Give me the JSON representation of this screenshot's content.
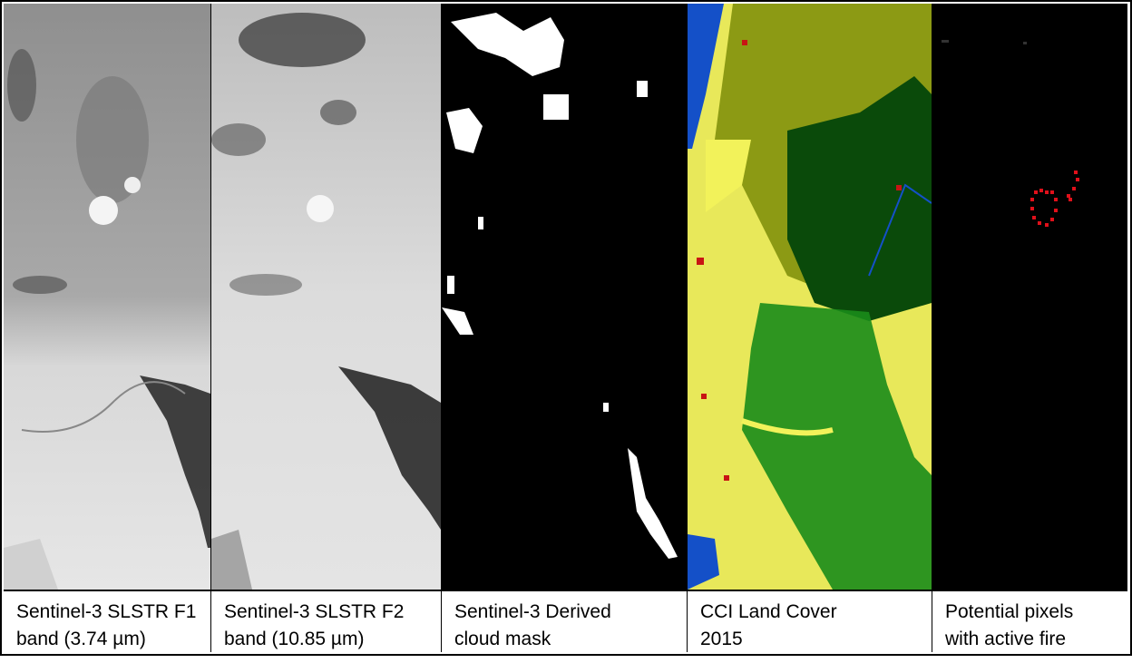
{
  "panels": [
    {
      "id": "f1",
      "caption_line1": "Sentinel-3 SLSTR F1",
      "caption_line2": "band (3.74 µm)"
    },
    {
      "id": "f2",
      "caption_line1": "Sentinel-3 SLSTR F2",
      "caption_line2": "band (10.85 µm)"
    },
    {
      "id": "cloud",
      "caption_line1": "Sentinel-3 Derived",
      "caption_line2": "cloud mask"
    },
    {
      "id": "landcover",
      "caption_line1": "CCI Land Cover",
      "caption_line2": "2015"
    },
    {
      "id": "fire",
      "caption_line1": "Potential pixels",
      "caption_line2": "with active fire"
    }
  ],
  "colors": {
    "border": "#000000",
    "cloud_white": "#ffffff",
    "mask_black": "#000000",
    "water": "#1450c8",
    "forest_dark": "#0a4a0a",
    "forest": "#1a8c1a",
    "olive": "#8c9a14",
    "crop_yellow": "#f2f25a",
    "urban_red": "#c81414",
    "fire_red": "#e0101a"
  }
}
